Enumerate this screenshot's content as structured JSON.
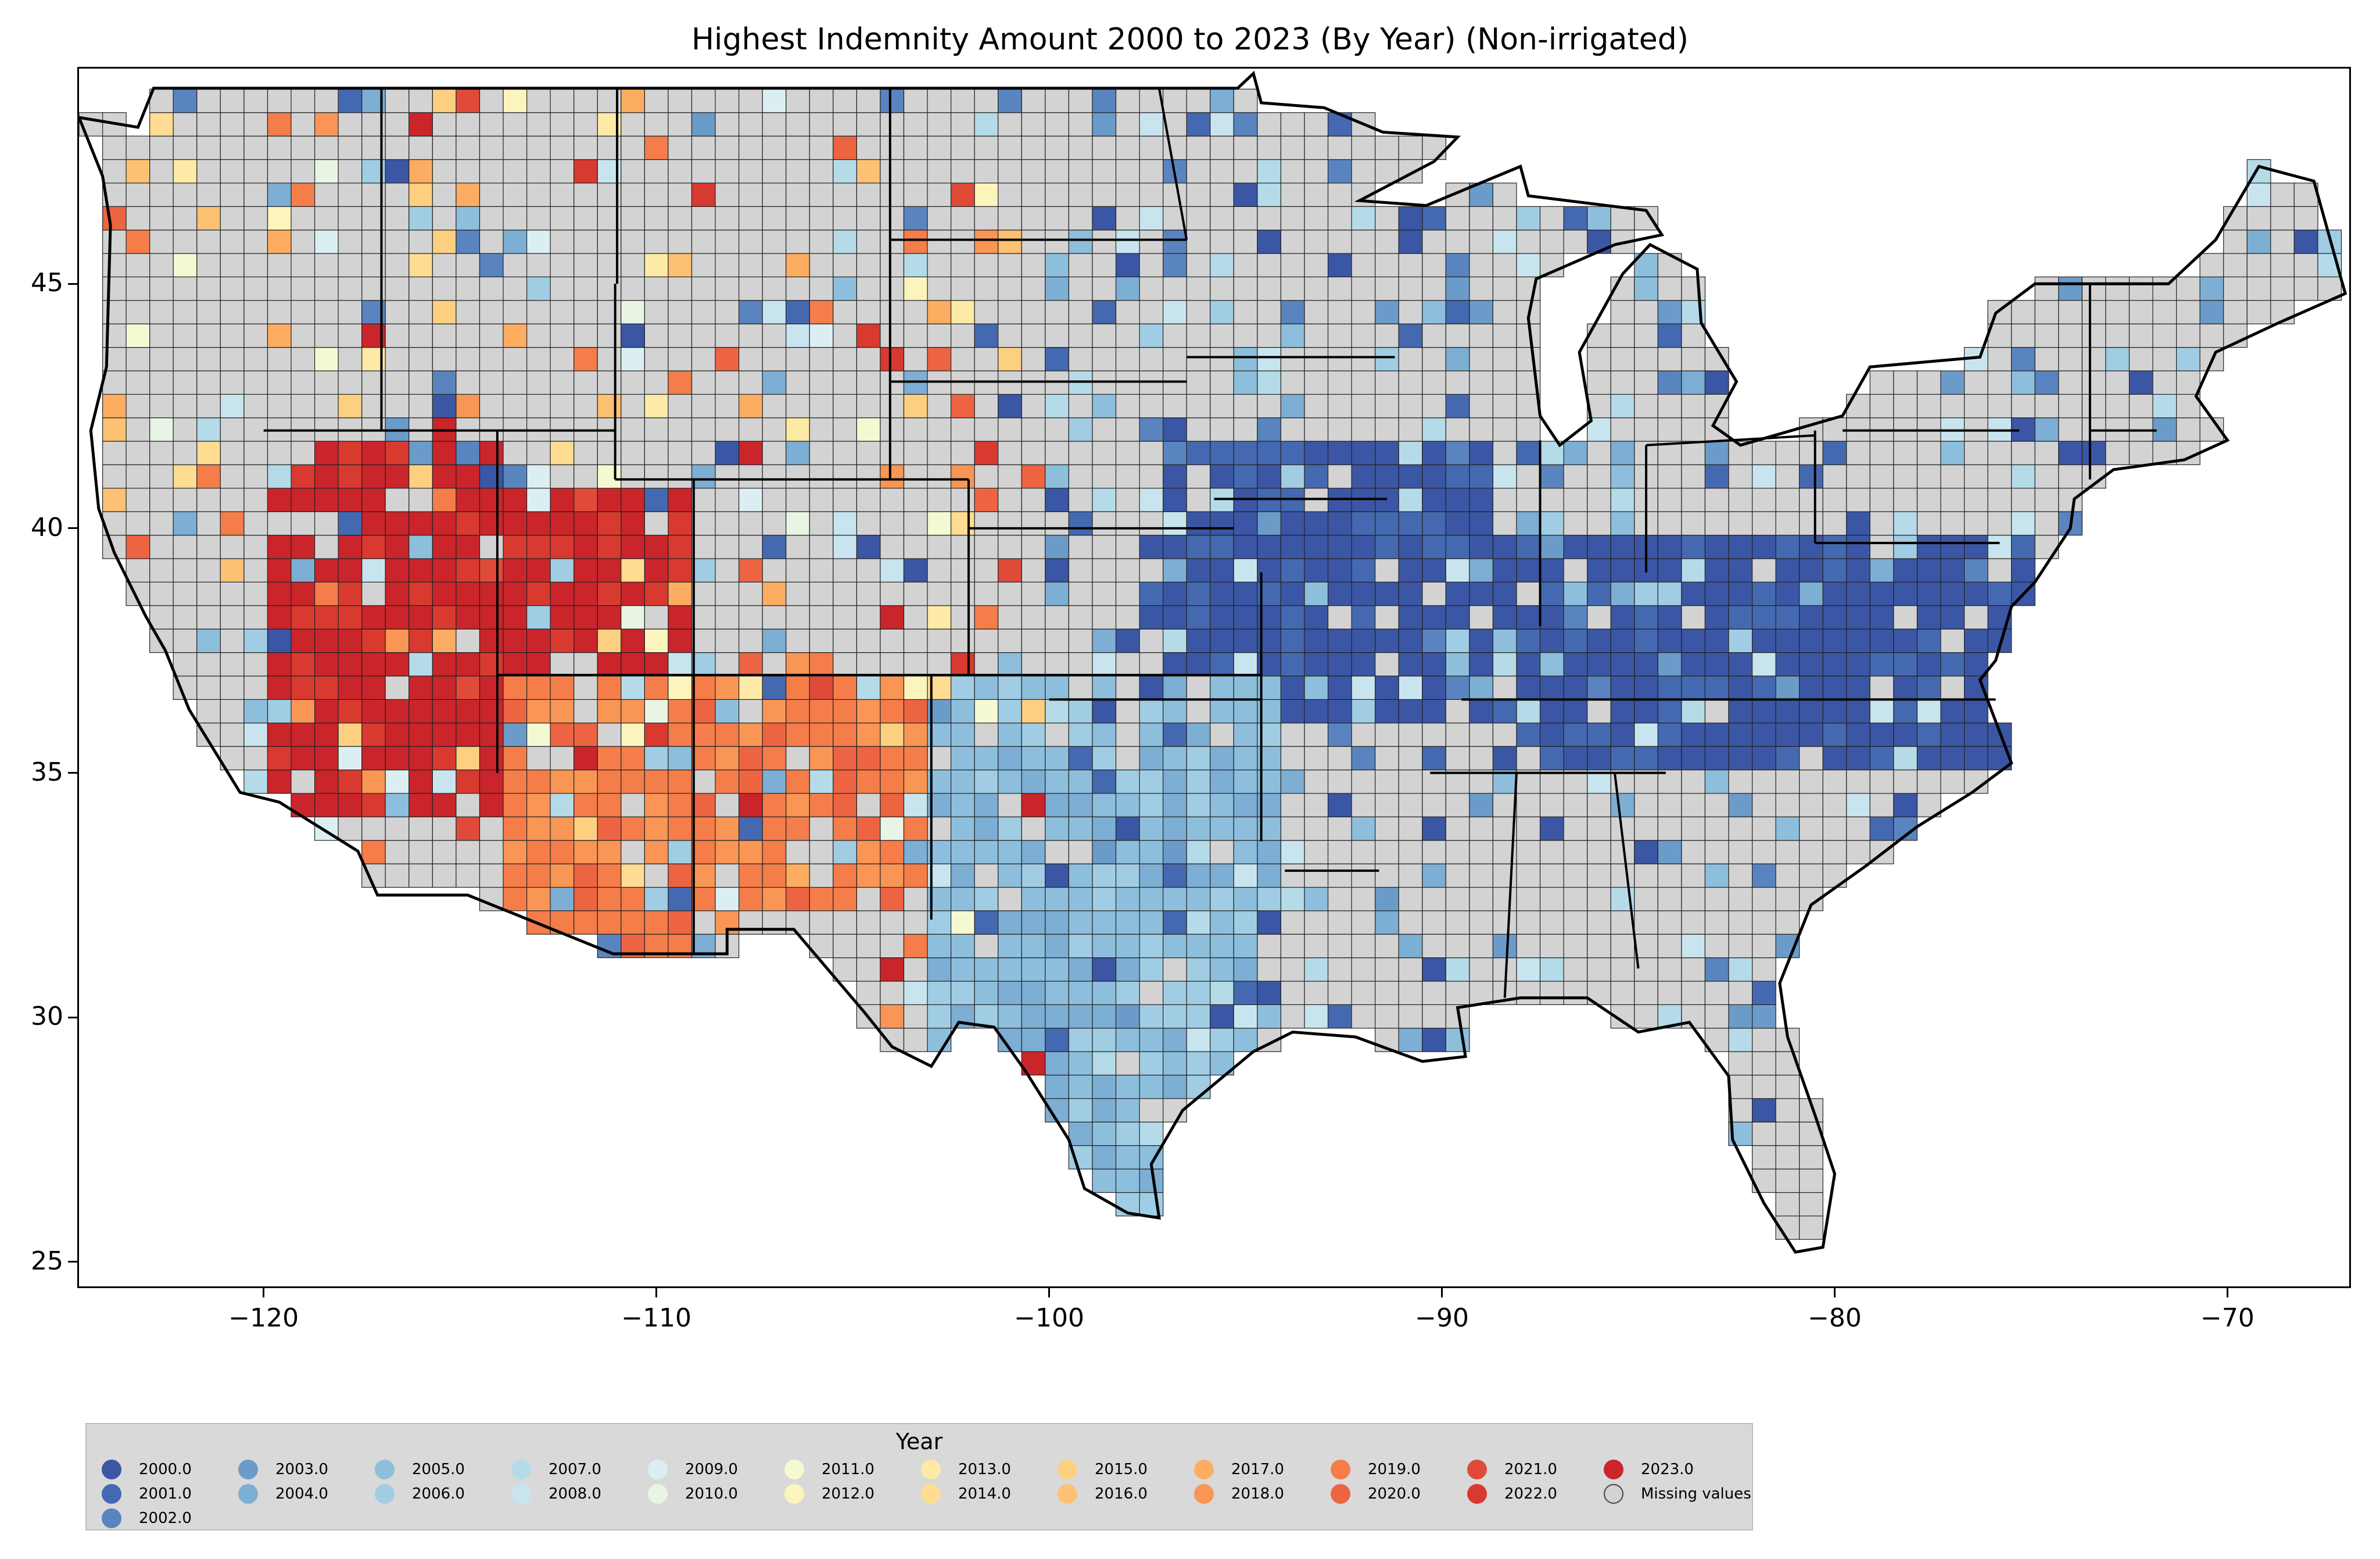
{
  "title": "Highest Indemnity Amount 2000 to 2023 (By Year) (Non-irrigated)",
  "chart_data": {
    "type": "choropleth",
    "projection": "plate-carree (longitude/latitude)",
    "xlim": [
      -124.7,
      -66.9
    ],
    "ylim": [
      24.5,
      49.4
    ],
    "x_ticks": [
      -120,
      -110,
      -100,
      -90,
      -80,
      -70
    ],
    "y_ticks": [
      25,
      30,
      35,
      40,
      45
    ],
    "x_tick_labels": [
      "−120",
      "−110",
      "−100",
      "−90",
      "−80",
      "−70"
    ],
    "y_tick_labels": [
      "25",
      "30",
      "35",
      "40",
      "45"
    ],
    "regions_dominant_year": [
      {
        "lon": [
          -120,
          -114
        ],
        "lat": [
          34,
          42
        ],
        "year": 2023
      },
      {
        "lon": [
          -114,
          -109
        ],
        "lat": [
          37,
          41
        ],
        "year": 2023
      },
      {
        "lon": [
          -114,
          -109
        ],
        "lat": [
          31.3,
          37
        ],
        "year": 2019
      },
      {
        "lon": [
          -109,
          -103
        ],
        "lat": [
          32,
          37
        ],
        "year": 2019
      },
      {
        "lon": [
          -103,
          -94
        ],
        "lat": [
          26,
          37
        ],
        "year": 2005
      },
      {
        "lon": [
          -97,
          -89
        ],
        "lat": [
          36,
          42
        ],
        "year": 2000
      },
      {
        "lon": [
          -89,
          -75
        ],
        "lat": [
          35,
          40
        ],
        "year": 2000
      }
    ]
  },
  "legend": {
    "title": "Year",
    "items": [
      {
        "label": "2000.0",
        "color": "#3b56a4"
      },
      {
        "label": "2001.0",
        "color": "#4469b0"
      },
      {
        "label": "2002.0",
        "color": "#5a84bf"
      },
      {
        "label": "2003.0",
        "color": "#6b9bc9"
      },
      {
        "label": "2004.0",
        "color": "#7daed4"
      },
      {
        "label": "2005.0",
        "color": "#8dbfdd"
      },
      {
        "label": "2006.0",
        "color": "#a0cde3"
      },
      {
        "label": "2007.0",
        "color": "#b5dbe9"
      },
      {
        "label": "2008.0",
        "color": "#c8e5ef"
      },
      {
        "label": "2009.0",
        "color": "#dbeff3"
      },
      {
        "label": "2010.0",
        "color": "#e9f5e4"
      },
      {
        "label": "2011.0",
        "color": "#f5f9d1"
      },
      {
        "label": "2012.0",
        "color": "#fbf5bd"
      },
      {
        "label": "2013.0",
        "color": "#fdeaa6"
      },
      {
        "label": "2014.0",
        "color": "#fedc92"
      },
      {
        "label": "2015.0",
        "color": "#fdd081"
      },
      {
        "label": "2016.0",
        "color": "#fcc172"
      },
      {
        "label": "2017.0",
        "color": "#fcad62"
      },
      {
        "label": "2018.0",
        "color": "#f99555"
      },
      {
        "label": "2019.0",
        "color": "#f47d4a"
      },
      {
        "label": "2020.0",
        "color": "#ed6442"
      },
      {
        "label": "2021.0",
        "color": "#e04b39"
      },
      {
        "label": "2022.0",
        "color": "#d83a2f"
      },
      {
        "label": "2023.0",
        "color": "#c9252b"
      },
      {
        "label": "Missing values",
        "color": "#d3d3d3"
      }
    ]
  }
}
